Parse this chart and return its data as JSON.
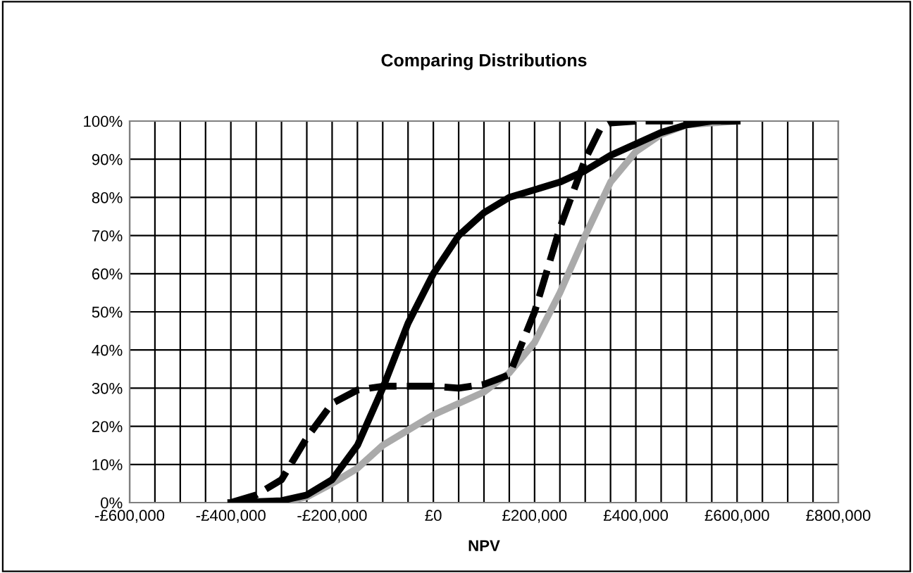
{
  "chart_data": {
    "type": "line",
    "title": "Comparing Distributions",
    "xlabel": "NPV",
    "xlim": [
      -600000,
      800000
    ],
    "xticks": [
      {
        "value": -600000,
        "label": "-£600,000"
      },
      {
        "value": -550000,
        "label": null
      },
      {
        "value": -500000,
        "label": null
      },
      {
        "value": -450000,
        "label": null
      },
      {
        "value": -400000,
        "label": "-£400,000"
      },
      {
        "value": -350000,
        "label": null
      },
      {
        "value": -300000,
        "label": null
      },
      {
        "value": -250000,
        "label": null
      },
      {
        "value": -200000,
        "label": "-£200,000"
      },
      {
        "value": -150000,
        "label": null
      },
      {
        "value": -100000,
        "label": null
      },
      {
        "value": -50000,
        "label": null
      },
      {
        "value": 0,
        "label": "£0"
      },
      {
        "value": 50000,
        "label": null
      },
      {
        "value": 100000,
        "label": null
      },
      {
        "value": 150000,
        "label": null
      },
      {
        "value": 200000,
        "label": "£200,000"
      },
      {
        "value": 250000,
        "label": null
      },
      {
        "value": 300000,
        "label": null
      },
      {
        "value": 350000,
        "label": null
      },
      {
        "value": 400000,
        "label": "£400,000"
      },
      {
        "value": 450000,
        "label": null
      },
      {
        "value": 500000,
        "label": null
      },
      {
        "value": 550000,
        "label": null
      },
      {
        "value": 600000,
        "label": "£600,000"
      },
      {
        "value": 650000,
        "label": null
      },
      {
        "value": 700000,
        "label": null
      },
      {
        "value": 750000,
        "label": null
      },
      {
        "value": 800000,
        "label": "£800,000"
      }
    ],
    "ylim": [
      0,
      100
    ],
    "yticks": [
      {
        "value": 0,
        "label": "0%"
      },
      {
        "value": 10,
        "label": "10%"
      },
      {
        "value": 20,
        "label": "20%"
      },
      {
        "value": 30,
        "label": "30%"
      },
      {
        "value": 40,
        "label": "40%"
      },
      {
        "value": 50,
        "label": "50%"
      },
      {
        "value": 60,
        "label": "60%"
      },
      {
        "value": 70,
        "label": "70%"
      },
      {
        "value": 80,
        "label": "80%"
      },
      {
        "value": 90,
        "label": "90%"
      },
      {
        "value": 100,
        "label": "100%"
      }
    ],
    "grid": true,
    "series": [
      {
        "color": "#aaaaaa",
        "line_style": "solid",
        "x": [
          -300000,
          -250000,
          -200000,
          -150000,
          -100000,
          -50000,
          0,
          50000,
          100000,
          150000,
          200000,
          250000,
          300000,
          350000,
          400000,
          450000,
          500000,
          550000,
          600000
        ],
        "values": [
          0,
          1.5,
          5,
          9,
          15,
          19,
          23,
          26,
          29,
          34,
          42,
          55,
          70,
          84,
          92,
          96.5,
          99,
          99.5,
          100
        ]
      },
      {
        "color": "#000000",
        "line_style": "dashed",
        "x": [
          -400000,
          -350000,
          -300000,
          -250000,
          -200000,
          -150000,
          -100000,
          -50000,
          0,
          50000,
          100000,
          150000,
          200000,
          250000,
          300000,
          330000,
          350000,
          400000,
          600000
        ],
        "values": [
          0,
          2,
          6,
          17,
          26,
          29.5,
          30.5,
          30.5,
          30.5,
          30,
          31,
          33.5,
          50,
          72,
          90,
          98,
          99.5,
          100,
          100
        ]
      },
      {
        "color": "#000000",
        "line_style": "solid",
        "x": [
          -400000,
          -300000,
          -250000,
          -200000,
          -150000,
          -100000,
          -50000,
          0,
          50000,
          100000,
          150000,
          200000,
          250000,
          300000,
          350000,
          400000,
          450000,
          500000,
          550000,
          600000
        ],
        "values": [
          0,
          0.5,
          2,
          6,
          15,
          30,
          47,
          60,
          70,
          76,
          80,
          82,
          84,
          87,
          91,
          94,
          97,
          99,
          100,
          100
        ]
      }
    ]
  }
}
